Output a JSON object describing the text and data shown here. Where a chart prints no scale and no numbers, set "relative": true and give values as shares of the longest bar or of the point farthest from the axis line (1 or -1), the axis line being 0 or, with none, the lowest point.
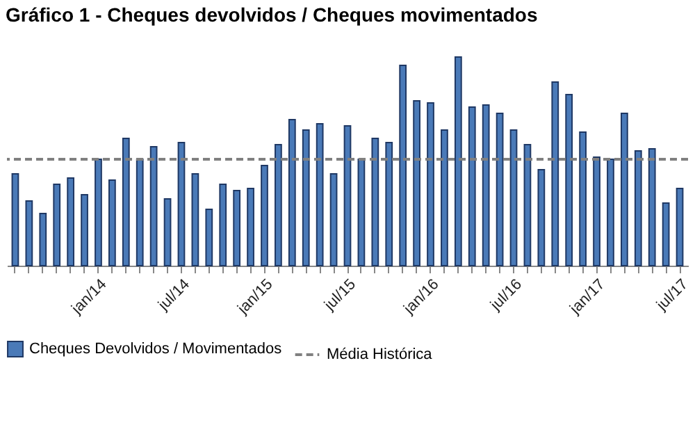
{
  "chart_data": {
    "type": "bar",
    "title": "Gráfico 1 - Cheques devolvidos / Cheques movimentados",
    "relative": true,
    "categories": [
      null,
      null,
      null,
      null,
      null,
      null,
      "jan/14",
      null,
      null,
      null,
      null,
      null,
      "jul/14",
      null,
      null,
      null,
      null,
      null,
      "jan/15",
      null,
      null,
      null,
      null,
      null,
      "jul/15",
      null,
      null,
      null,
      null,
      null,
      "jan/16",
      null,
      null,
      null,
      null,
      null,
      "jul/16",
      null,
      null,
      null,
      null,
      null,
      "jan/17",
      null,
      null,
      null,
      null,
      null,
      "jul/17"
    ],
    "series": [
      {
        "name": "Cheques Devolvidos / Movimentados",
        "color": "#4a7ab8",
        "values": [
          0.44,
          0.31,
          0.25,
          0.39,
          0.42,
          0.34,
          0.51,
          0.41,
          0.61,
          0.51,
          0.57,
          0.32,
          0.59,
          0.44,
          0.27,
          0.39,
          0.36,
          0.37,
          0.48,
          0.58,
          0.7,
          0.65,
          0.68,
          0.44,
          0.67,
          0.51,
          0.61,
          0.59,
          0.96,
          0.79,
          0.78,
          0.65,
          1,
          0.76,
          0.77,
          0.73,
          0.65,
          0.58,
          0.46,
          0.88,
          0.82,
          0.64,
          0.52,
          0.51,
          0.73,
          0.55,
          0.56,
          0.3,
          0.37
        ]
      }
    ],
    "ref_lines": [
      {
        "axis": "y",
        "value": 0.51,
        "label": "Média Histórica",
        "color": "#808080",
        "line_style": "dashed"
      }
    ],
    "legend": "bottom"
  }
}
